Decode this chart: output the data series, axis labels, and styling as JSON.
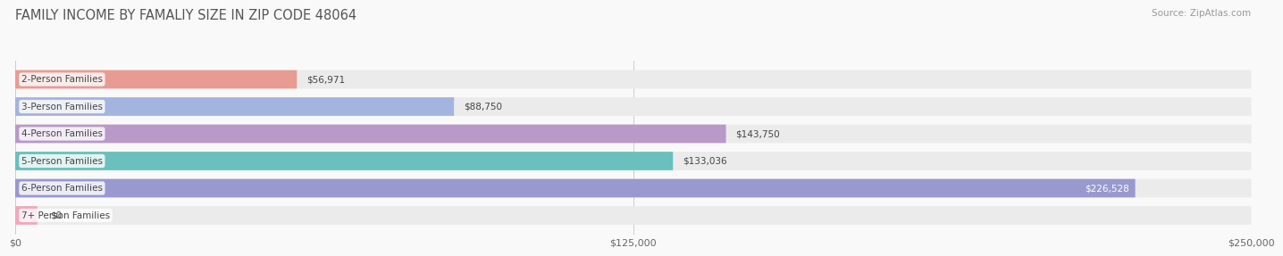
{
  "title": "FAMILY INCOME BY FAMALIY SIZE IN ZIP CODE 48064",
  "source_text": "Source: ZipAtlas.com",
  "categories": [
    "2-Person Families",
    "3-Person Families",
    "4-Person Families",
    "5-Person Families",
    "6-Person Families",
    "7+ Person Families"
  ],
  "values": [
    56971,
    88750,
    143750,
    133036,
    226528,
    0
  ],
  "bar_colors": [
    "#e8928a",
    "#9baedd",
    "#b490c4",
    "#5bbcb8",
    "#9090cc",
    "#f4a0b5"
  ],
  "value_labels": [
    "$56,971",
    "$88,750",
    "$143,750",
    "$133,036",
    "$226,528",
    "$0"
  ],
  "xlim": [
    0,
    250000
  ],
  "xticks": [
    0,
    125000,
    250000
  ],
  "xtick_labels": [
    "$0",
    "$125,000",
    "$250,000"
  ],
  "title_fontsize": 10.5,
  "label_fontsize": 7.5,
  "value_fontsize": 7.5,
  "bar_height": 0.68,
  "row_bg_color": "#ebebeb",
  "fig_bg_color": "#f9f9f9"
}
